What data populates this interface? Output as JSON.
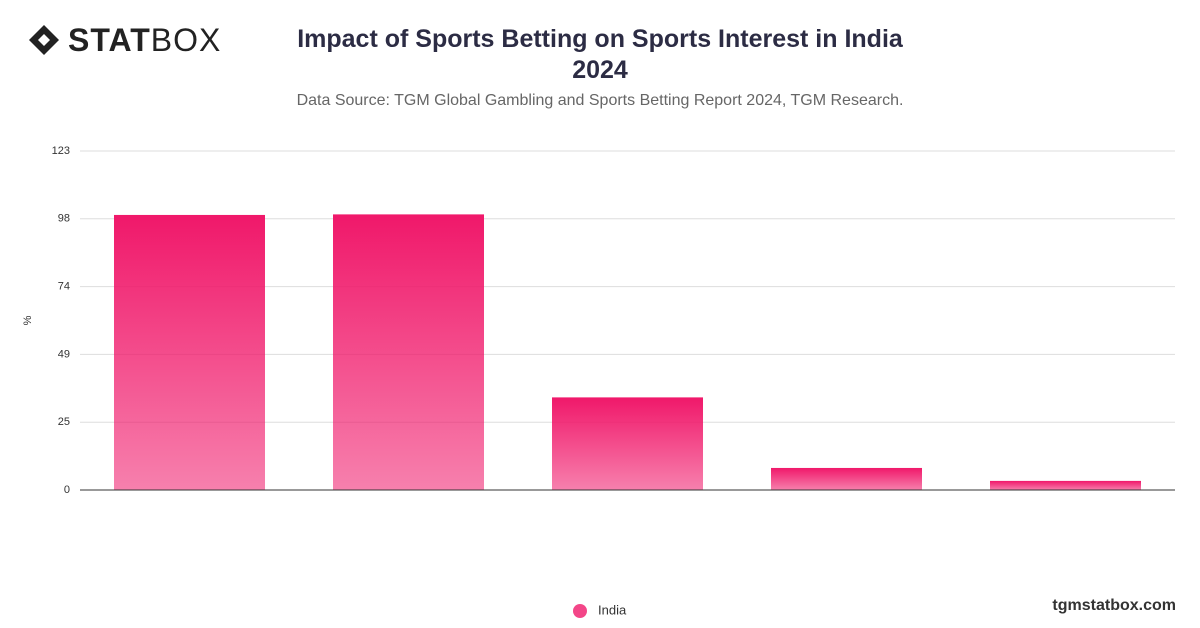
{
  "page": {
    "logo_bold": "STAT",
    "logo_light": "BOX",
    "footer": "tgmstatbox.com"
  },
  "chart_data": {
    "type": "bar",
    "title": "Impact of Sports Betting on Sports Interest in India 2024",
    "subtitle": "Data Source: TGM Global Gambling and Sports Betting Report 2024, TGM Research.",
    "y_label": "%",
    "categories": [
      null,
      null,
      null,
      null,
      null
    ],
    "series": [
      {
        "name": "India",
        "color": "#f0186a",
        "values": [
          99.8,
          100,
          33.6,
          8,
          3.3
        ]
      }
    ],
    "ylim": [
      0,
      123
    ],
    "yticks": [
      0,
      {
        "value": 24.6,
        "label": "25"
      },
      {
        "value": 49.2,
        "label": "49"
      },
      {
        "value": 73.8,
        "label": "74"
      },
      {
        "value": 98.4,
        "label": "98"
      },
      123
    ],
    "grid": true
  }
}
